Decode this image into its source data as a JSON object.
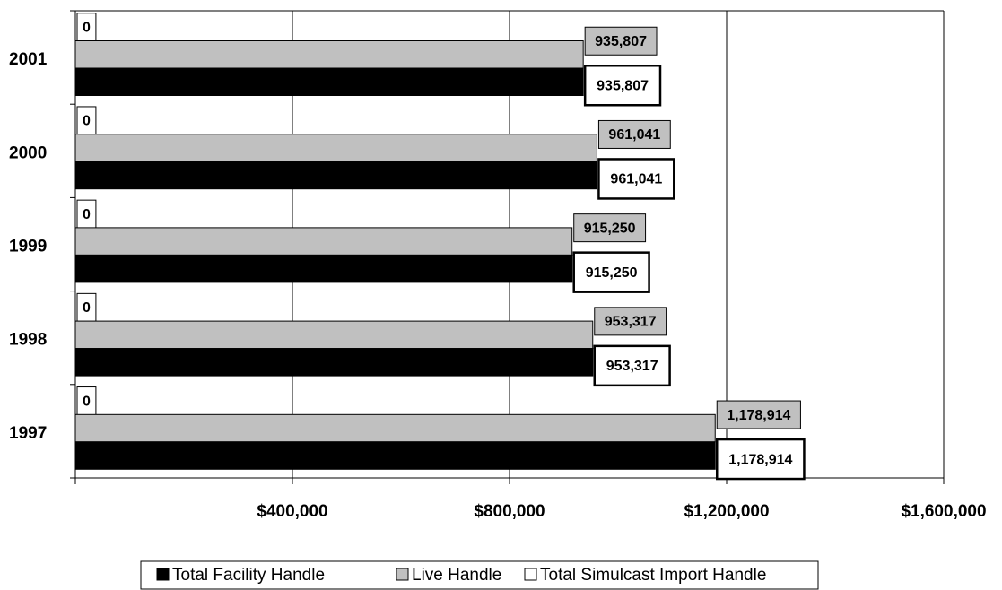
{
  "chart_data": {
    "type": "hbar",
    "categories": [
      "1997",
      "1998",
      "1999",
      "2000",
      "2001"
    ],
    "series": [
      {
        "name": "Total Facility Handle",
        "color": "#000000",
        "values": [
          1178914,
          953317,
          915250,
          961041,
          935807
        ],
        "value_labels": [
          "1,178,914",
          "953,317",
          "915,250",
          "961,041",
          "935,807"
        ]
      },
      {
        "name": "Live Handle",
        "color": "#c0c0c0",
        "values": [
          1178914,
          953317,
          915250,
          961041,
          935807
        ],
        "value_labels": [
          "1,178,914",
          "953,317",
          "915,250",
          "961,041",
          "935,807"
        ]
      },
      {
        "name": "Total Simulcast Import Handle",
        "color": "#ffffff",
        "values": [
          0,
          0,
          0,
          0,
          0
        ]
      }
    ],
    "xlim": [
      0,
      1600000
    ],
    "xticks": [
      {
        "value": 400000,
        "label": "$400,000"
      },
      {
        "value": 800000,
        "label": "$800,000"
      },
      {
        "value": 1200000,
        "label": "$1,200,000"
      },
      {
        "value": 1600000,
        "label": "$1,600,000"
      }
    ],
    "grid": true,
    "legend": "bottom"
  }
}
